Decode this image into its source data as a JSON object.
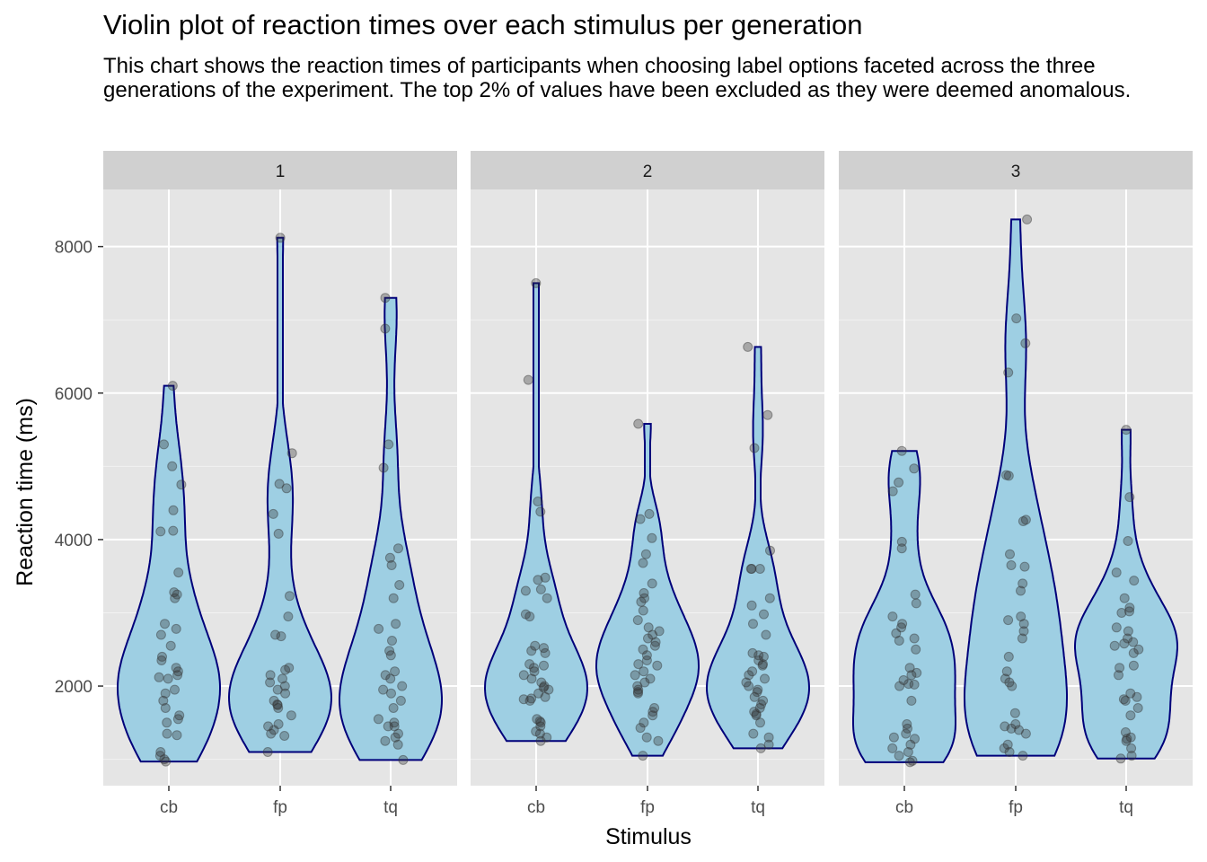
{
  "chart_data": {
    "type": "violin",
    "title": "Violin plot of reaction times over each stimulus per generation",
    "subtitle": "This chart shows the reaction times of participants when choosing label options faceted across the three generations of the experiment. The top 2% of values have been excluded as they were deemed anomalous.",
    "xlabel": "Stimulus",
    "ylabel": "Reaction time (ms)",
    "ylim": [
      640,
      8780
    ],
    "yticks": [
      2000,
      4000,
      6000,
      8000
    ],
    "categories": [
      "cb",
      "fp",
      "tq"
    ],
    "grid": true,
    "colors": {
      "violin_fill": "#9ecfe3",
      "violin_outline": "#00007a",
      "panel_bg": "#e5e5e5",
      "strip_bg": "#d0d0d0",
      "point": "#333333"
    },
    "facets": [
      {
        "label": "1",
        "groups": [
          {
            "stimulus": "cb",
            "min": 970,
            "max": 6100,
            "points": [
              6100,
              5300,
              5000,
              4750,
              4400,
              4120,
              4110,
              3550,
              3280,
              3250,
              3200,
              2850,
              2780,
              2700,
              2550,
              2400,
              2350,
              2250,
              2200,
              2150,
              2120,
              2100,
              1950,
              1900,
              1800,
              1700,
              1600,
              1550,
              1500,
              1350,
              1330,
              1100,
              1050,
              1000,
              970
            ]
          },
          {
            "stimulus": "fp",
            "min": 1100,
            "max": 8120,
            "points": [
              8120,
              5180,
              4760,
              4700,
              4350,
              4080,
              3230,
              2950,
              2700,
              2680,
              2250,
              2220,
              2150,
              2100,
              2050,
              2000,
              1950,
              1900,
              1800,
              1750,
              1740,
              1700,
              1600,
              1480,
              1450,
              1400,
              1350,
              1320,
              1100
            ]
          },
          {
            "stimulus": "tq",
            "min": 990,
            "max": 7300,
            "points": [
              7300,
              6880,
              5300,
              4980,
              3880,
              3750,
              3650,
              3380,
              3200,
              2850,
              2780,
              2620,
              2480,
              2420,
              2200,
              2150,
              2100,
              2000,
              1950,
              1900,
              1800,
              1700,
              1550,
              1500,
              1450,
              1450,
              1350,
              1300,
              1250,
              1200,
              990
            ]
          }
        ]
      },
      {
        "label": "2",
        "groups": [
          {
            "stimulus": "cb",
            "min": 1250,
            "max": 7500,
            "points": [
              7500,
              6180,
              4520,
              4380,
              3480,
              3450,
              3320,
              3300,
              3200,
              2980,
              2950,
              2550,
              2520,
              2480,
              2450,
              2300,
              2280,
              2250,
              2200,
              2150,
              2100,
              2050,
              2000,
              1980,
              1950,
              1900,
              1850,
              1830,
              1820,
              1800,
              1550,
              1520,
              1500,
              1450,
              1380,
              1350,
              1300,
              1250
            ]
          },
          {
            "stimulus": "fp",
            "min": 1050,
            "max": 5580,
            "points": [
              5580,
              4350,
              4280,
              4020,
              3800,
              3680,
              3400,
              3270,
              3200,
              3150,
              3030,
              2900,
              2800,
              2750,
              2700,
              2650,
              2600,
              2550,
              2500,
              2420,
              2350,
              2300,
              2280,
              2200,
              2150,
              2100,
              2050,
              2000,
              1950,
              1920,
              1900,
              1700,
              1650,
              1600,
              1500,
              1430,
              1300,
              1250,
              1050
            ]
          },
          {
            "stimulus": "tq",
            "min": 1150,
            "max": 6630,
            "points": [
              6630,
              5700,
              5250,
              3850,
              3600,
              3600,
              3600,
              3200,
              3100,
              2980,
              2850,
              2700,
              2450,
              2420,
              2400,
              2350,
              2300,
              2280,
              2200,
              2150,
              2100,
              2050,
              2000,
              1950,
              1920,
              1850,
              1800,
              1750,
              1700,
              1650,
              1620,
              1600,
              1500,
              1350,
              1300,
              1200,
              1150
            ]
          }
        ]
      },
      {
        "label": "3",
        "groups": [
          {
            "stimulus": "cb",
            "min": 960,
            "max": 5210,
            "points": [
              5210,
              4970,
              4780,
              4660,
              3970,
              3880,
              3250,
              3130,
              2950,
              2850,
              2800,
              2720,
              2650,
              2620,
              2500,
              2250,
              2180,
              2150,
              2080,
              2030,
              2020,
              2000,
              1800,
              1480,
              1420,
              1350,
              1300,
              1280,
              1200,
              1150,
              1100,
              1050,
              980,
              960
            ]
          },
          {
            "stimulus": "fp",
            "min": 1050,
            "max": 8370,
            "points": [
              8370,
              7020,
              6680,
              6280,
              4880,
              4870,
              4270,
              4250,
              3800,
              3650,
              3630,
              3400,
              3300,
              2950,
              2900,
              2850,
              2750,
              2650,
              2400,
              2200,
              2100,
              2050,
              2000,
              1630,
              1480,
              1450,
              1420,
              1400,
              1350,
              1200,
              1150,
              1100,
              1050
            ]
          },
          {
            "stimulus": "tq",
            "min": 1010,
            "max": 5500,
            "points": [
              5500,
              4580,
              3980,
              3550,
              3440,
              3200,
              3070,
              3020,
              3000,
              2800,
              2750,
              2650,
              2600,
              2580,
              2550,
              2500,
              2450,
              2280,
              2250,
              2150,
              1900,
              1850,
              1820,
              1800,
              1700,
              1600,
              1370,
              1300,
              1280,
              1250,
              1150,
              1050,
              1010
            ]
          }
        ]
      }
    ]
  }
}
